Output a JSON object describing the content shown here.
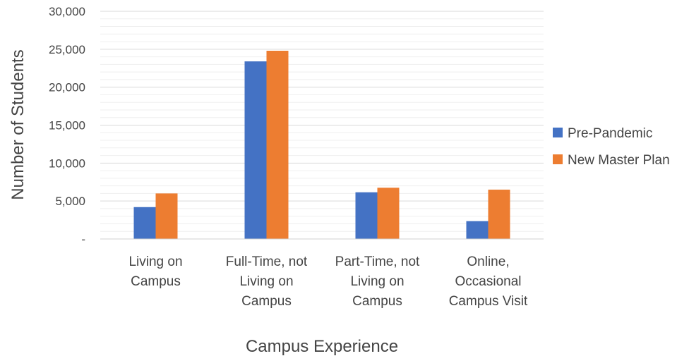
{
  "chart_data": {
    "type": "bar",
    "title": "",
    "xlabel": "Campus Experience",
    "ylabel": "Number of Students",
    "categories": [
      [
        "Living on",
        "Campus"
      ],
      [
        "Full-Time, not",
        "Living on",
        "Campus"
      ],
      [
        "Part-Time, not",
        "Living on",
        "Campus"
      ],
      [
        "Online,",
        "Occasional",
        "Campus Visit"
      ]
    ],
    "series": [
      {
        "name": "Pre-Pandemic",
        "color": "#4472C4",
        "values": [
          4200,
          23400,
          6150,
          2350
        ]
      },
      {
        "name": "New Master Plan",
        "color": "#ED7D31",
        "values": [
          6000,
          24800,
          6750,
          6500
        ]
      }
    ],
    "ylim": [
      0,
      30000
    ],
    "yticks": [
      "-",
      "5,000",
      "10,000",
      "15,000",
      "20,000",
      "25,000",
      "30,000"
    ],
    "grid": true,
    "legend": "right"
  }
}
